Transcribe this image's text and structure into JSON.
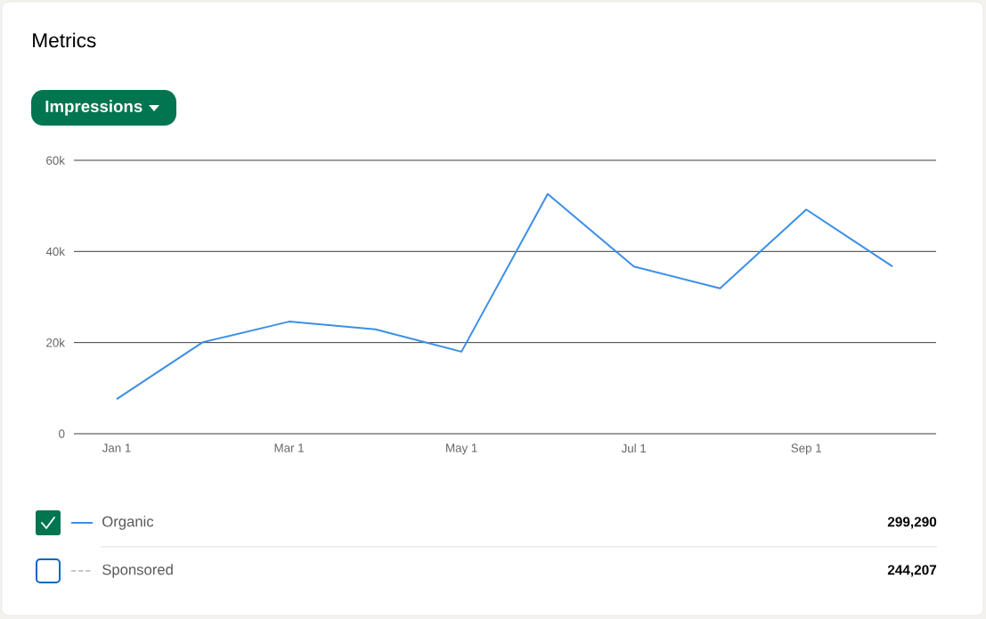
{
  "chart_data": {
    "type": "line",
    "title": "Metrics",
    "ylabel": "Impressions",
    "categories": [
      "Jan 1",
      null,
      "Mar 1",
      null,
      "May 1",
      null,
      "Jul 1",
      null,
      "Sep 1",
      null
    ],
    "series": [
      {
        "name": "Organic",
        "color": "#3b8fe6",
        "line_style": "solid",
        "values": [
          7600,
          20100,
          24600,
          22900,
          18000,
          52600,
          36700,
          31900,
          49200,
          36700
        ]
      },
      {
        "name": "Sponsored",
        "color": "#c8c8c8",
        "line_style": "dashed",
        "values": [
          null,
          null,
          null,
          null,
          null,
          null,
          null,
          null,
          null,
          null
        ]
      }
    ],
    "ylim": [
      0,
      60000
    ],
    "yticks": [
      {
        "value": 0,
        "label": "0"
      },
      {
        "value": 20000,
        "label": "20k"
      },
      {
        "value": 40000,
        "label": "40k"
      },
      {
        "value": 60000,
        "label": "60k"
      }
    ],
    "grid": "y",
    "legend": "bottom",
    "marker": "none",
    "annotations": [
      "299,290",
      "244,207"
    ]
  }
}
